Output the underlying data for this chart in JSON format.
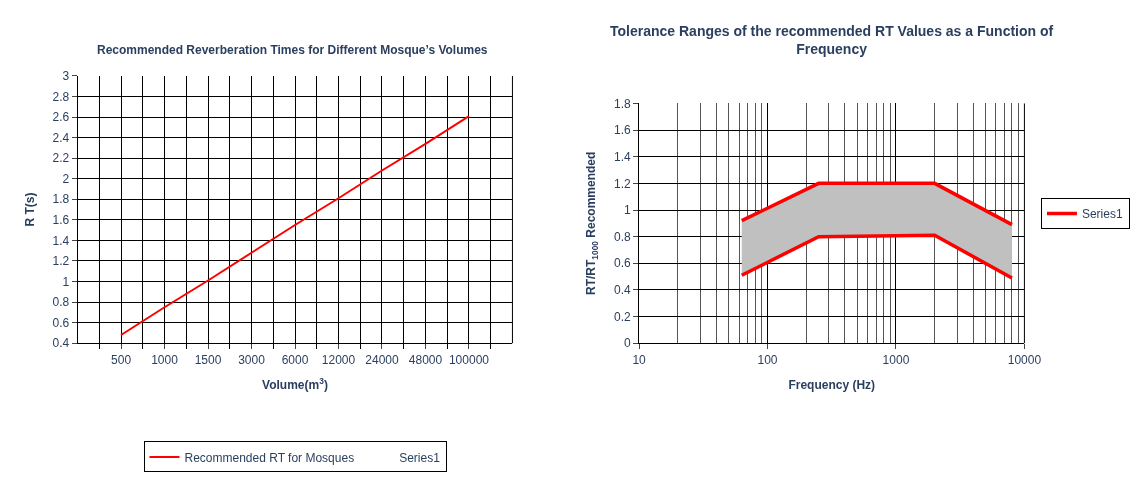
{
  "chart_data": [
    {
      "type": "line",
      "title": "Recommended Reverberation Times for Different Mosque’s Volumes",
      "xlabel": "Volume(m$^{3}$)",
      "ylabel": "R T(s)",
      "categories": [
        "500",
        "1000",
        "1500",
        "3000",
        "6000",
        "12000",
        "24000",
        "48000",
        "100000"
      ],
      "series": [
        {
          "name": "Series1",
          "values": [
            null,
            null,
            null,
            null,
            null,
            null,
            null,
            null,
            null
          ]
        },
        {
          "name": "Recommended RT for Mosques",
          "color": "#ff0000",
          "values": [
            0.48,
            0.75,
            1.01,
            1.28,
            1.55,
            1.81,
            2.08,
            2.34,
            2.61
          ]
        }
      ],
      "ylim": [
        0.4,
        3
      ],
      "yticks": [
        0.4,
        0.6,
        0.8,
        1,
        1.2,
        1.4,
        1.6,
        1.8,
        2,
        2.2,
        2.4,
        2.6,
        2.8,
        3
      ],
      "grid": true,
      "legend": "bottom",
      "marker": "none",
      "line_style": "solid"
    },
    {
      "type": "line",
      "title": "Tolerance Ranges of the recommended RT Values as a Function of Frequency",
      "xlabel": "Frequency (Hz)",
      "ylabel": "RT/RT$_{1000}$ Recommended",
      "x": [
        63,
        250,
        2000,
        8000
      ],
      "series": [
        {
          "name": "Series1",
          "color": "#ff0000",
          "values": [
            0.92,
            1.2,
            1.2,
            0.89
          ],
          "lower": [
            0.51,
            0.8,
            0.81,
            0.49
          ],
          "upper": [
            0.92,
            1.2,
            1.2,
            0.89
          ]
        },
        {
          "color": "#ff0000",
          "values": [
            0.51,
            0.8,
            0.81,
            0.49
          ]
        }
      ],
      "log": "x",
      "xlim": [
        10,
        10000
      ],
      "xticks": [
        10,
        100,
        1000,
        10000
      ],
      "ylim": [
        0,
        1.8
      ],
      "yticks": [
        0,
        0.2,
        0.4,
        0.6,
        0.8,
        1,
        1.2,
        1.4,
        1.6,
        1.8
      ],
      "grid": true,
      "legend": "right",
      "marker": "none",
      "line_style": "solid"
    }
  ]
}
